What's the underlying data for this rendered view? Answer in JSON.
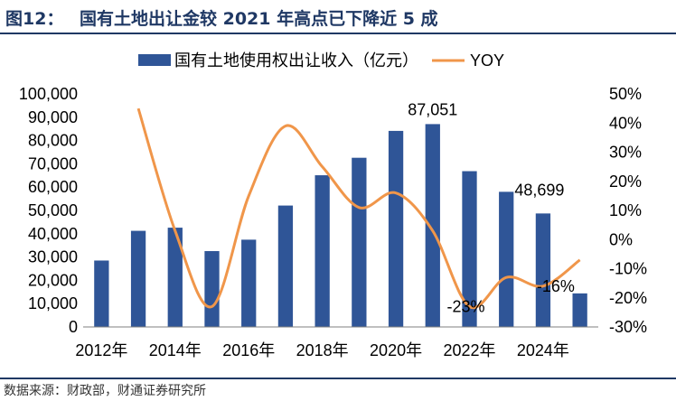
{
  "header": {
    "figure_label": "图12：",
    "title": "国有土地出让金较 2021 年高点已下降近 5 成"
  },
  "footer": {
    "source": "数据来源：财政部，财通证券研究所"
  },
  "chart_data": {
    "type": "bar+line",
    "categories": [
      "2012",
      "2013",
      "2014",
      "2015",
      "2016",
      "2017",
      "2018",
      "2019",
      "2020",
      "2021",
      "2022",
      "2023",
      "2024",
      "2025"
    ],
    "x_tick_labels": [
      "2012年",
      "2014年",
      "2016年",
      "2018年",
      "2020年",
      "2022年",
      "2024年"
    ],
    "x_tick_categories": [
      "2012",
      "2014",
      "2016",
      "2018",
      "2020",
      "2022",
      "2024"
    ],
    "series": [
      {
        "name": "国有土地使用权出让收入（亿元）",
        "type": "bar",
        "axis": "left",
        "color": "#2f5597",
        "values": [
          28500,
          41250,
          42600,
          32550,
          37450,
          52100,
          65100,
          72600,
          84140,
          87051,
          66850,
          57995,
          48699,
          14400
        ]
      },
      {
        "name": "YOY",
        "type": "line",
        "axis": "right",
        "color": "#f0964a",
        "values": [
          null,
          45,
          3,
          -23,
          15,
          39,
          25,
          11,
          16,
          3,
          -23,
          -13,
          -16,
          -7
        ]
      }
    ],
    "left_axis": {
      "min": 0,
      "max": 100000,
      "step": 10000,
      "tick_labels": [
        "0",
        "10,000",
        "20,000",
        "30,000",
        "40,000",
        "50,000",
        "60,000",
        "70,000",
        "80,000",
        "90,000",
        "100,000"
      ]
    },
    "right_axis": {
      "min": -30,
      "max": 50,
      "step": 10,
      "tick_labels": [
        "-30%",
        "-20%",
        "-10%",
        "0%",
        "10%",
        "20%",
        "30%",
        "40%",
        "50%"
      ]
    },
    "annotations": [
      {
        "text": "87,051",
        "category": "2021",
        "series": 0
      },
      {
        "text": "48,699",
        "category": "2024",
        "series": 0
      },
      {
        "text": "-23%",
        "category": "2022",
        "series": 1
      },
      {
        "text": "-16%",
        "category": "2024",
        "series": 1
      }
    ],
    "legend_position": "top",
    "grid": false
  }
}
